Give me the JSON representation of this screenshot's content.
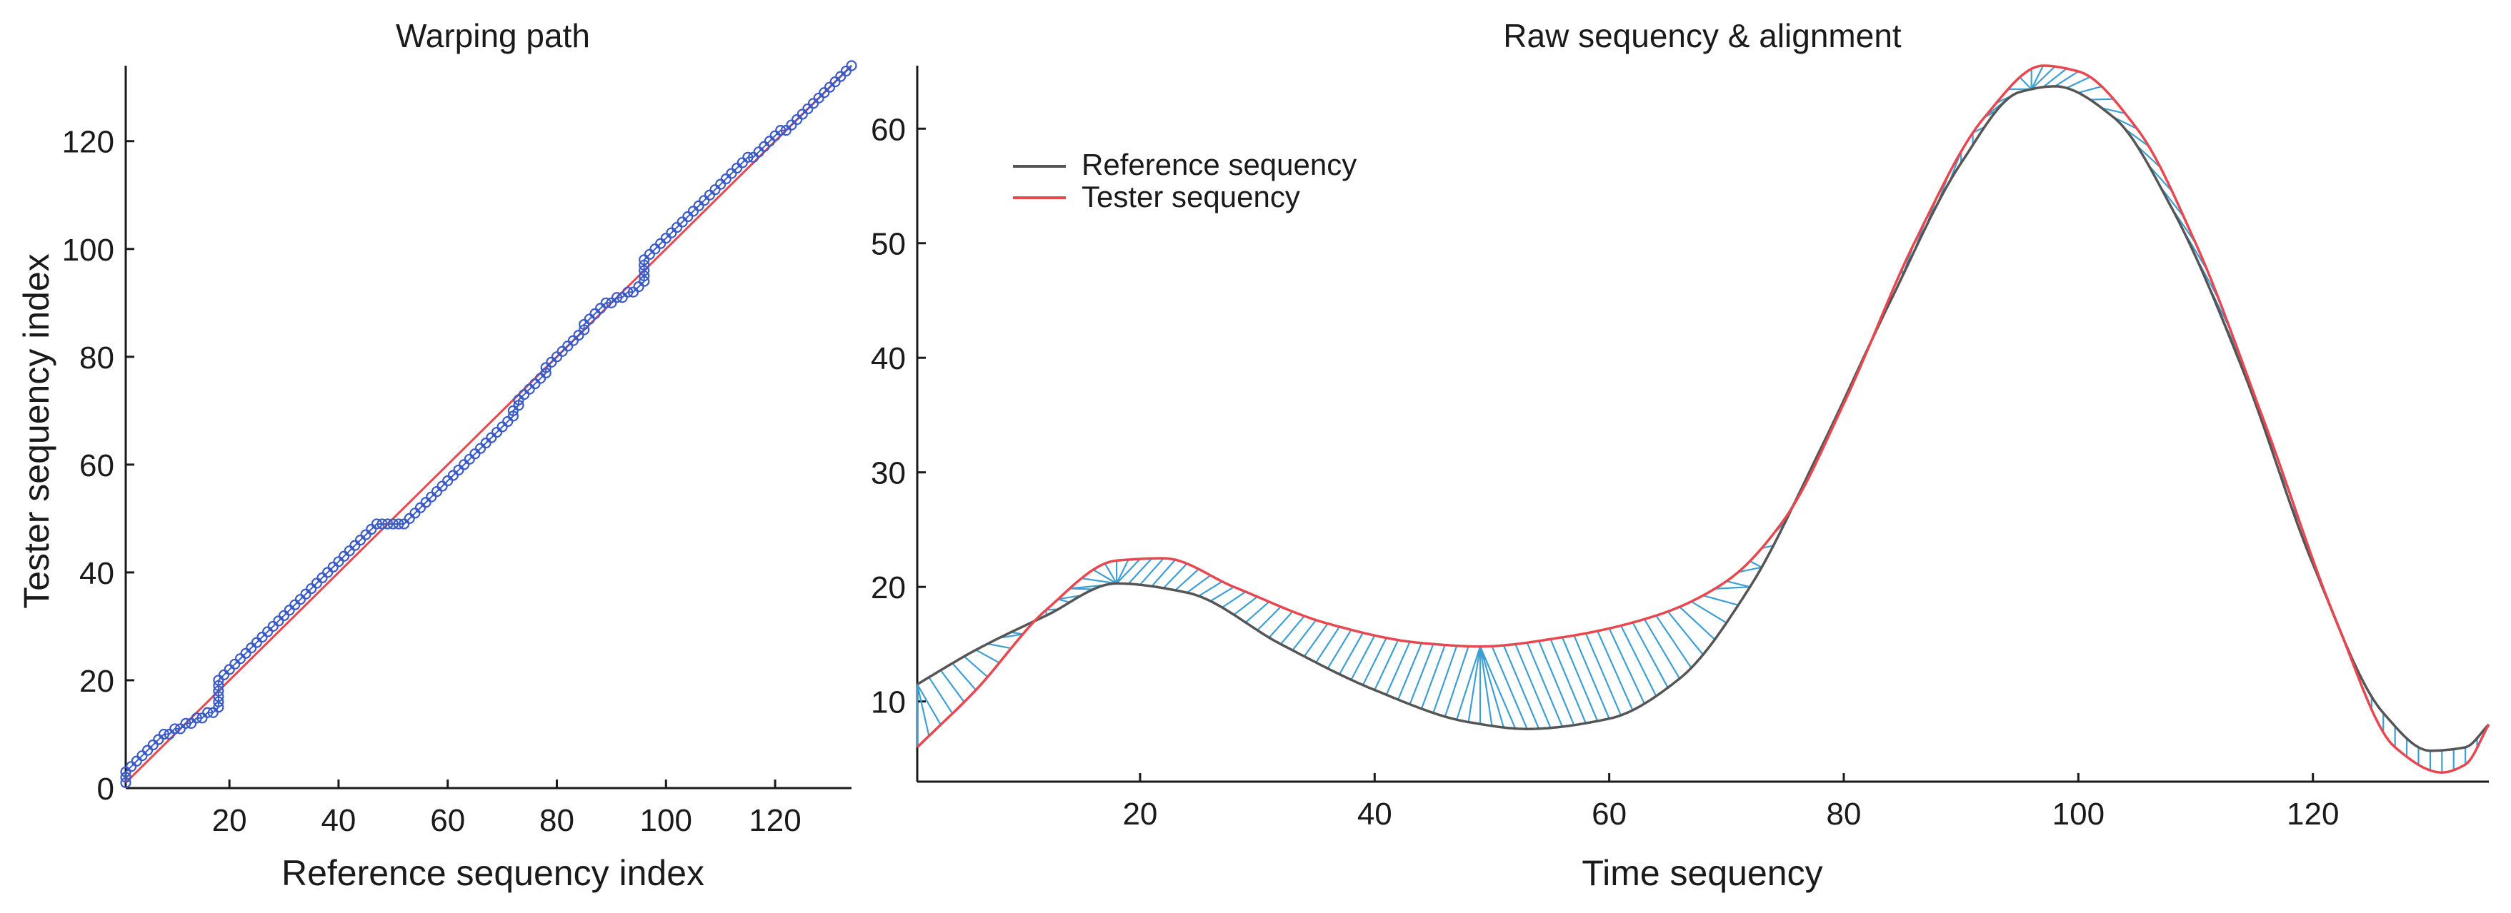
{
  "colors": {
    "reference": "#555555",
    "tester": "#e8474f",
    "alignment": "#3d9fd3",
    "path_marker": "#3a5bc7",
    "diagonal": "#e8474f",
    "axis": "#1a1a1a"
  },
  "chart_data": [
    {
      "type": "scatter",
      "title": "Warping path",
      "xlabel": "Reference sequency index",
      "ylabel": "Tester sequency index",
      "xlim": [
        1,
        134
      ],
      "ylim": [
        0,
        134
      ],
      "xticks": [
        20,
        40,
        60,
        80,
        100,
        120
      ],
      "yticks": [
        0,
        20,
        40,
        60,
        80,
        100,
        120
      ],
      "grid": false,
      "diagonal": {
        "from": [
          1,
          1
        ],
        "to": [
          134,
          134
        ]
      },
      "series": [
        {
          "marker": "circle",
          "path_points": [
            [
              1,
              1
            ],
            [
              1,
              3
            ],
            [
              2,
              4
            ],
            [
              3,
              5
            ],
            [
              4,
              6
            ],
            [
              5,
              7
            ],
            [
              6,
              8
            ],
            [
              7,
              9
            ],
            [
              9,
              10
            ],
            [
              11,
              11
            ],
            [
              13,
              12
            ],
            [
              15,
              13
            ],
            [
              17,
              14
            ],
            [
              18,
              15
            ],
            [
              18,
              16
            ],
            [
              18,
              17
            ],
            [
              18,
              18
            ],
            [
              18,
              19
            ],
            [
              18,
              20
            ],
            [
              19,
              21
            ],
            [
              47,
              49
            ],
            [
              52,
              49
            ],
            [
              53,
              50
            ],
            [
              71,
              68
            ],
            [
              72,
              70
            ],
            [
              73,
              72
            ],
            [
              74,
              73
            ],
            [
              89,
              90
            ],
            [
              92,
              91
            ],
            [
              94,
              92
            ],
            [
              95,
              93
            ],
            [
              96,
              94
            ],
            [
              96,
              96
            ],
            [
              96,
              98
            ],
            [
              97,
              99
            ],
            [
              114,
              116
            ],
            [
              116,
              117
            ],
            [
              126,
              126
            ],
            [
              127,
              127
            ],
            [
              134,
              134
            ]
          ]
        }
      ]
    },
    {
      "type": "line",
      "title": "Raw sequency & alignment",
      "xlabel": "Time sequency",
      "ylabel": "",
      "xlim": [
        1,
        135
      ],
      "ylim": [
        3,
        65.5
      ],
      "xticks": [
        20,
        40,
        60,
        80,
        100,
        120
      ],
      "yticks": [
        10,
        20,
        30,
        40,
        50,
        60
      ],
      "grid": false,
      "legend": "top-left",
      "series": [
        {
          "name": "Reference sequency",
          "x": [
            1,
            6,
            12,
            18,
            24,
            32,
            40,
            48,
            53,
            60,
            66,
            72,
            78,
            84,
            90,
            95,
            98,
            103,
            108,
            114,
            120,
            126,
            130,
            133,
            135
          ],
          "y": [
            11.5,
            14.5,
            17.5,
            20.3,
            19.5,
            15.0,
            11.0,
            8.2,
            7.6,
            8.5,
            12.0,
            20.0,
            32.0,
            45.0,
            57.0,
            63.2,
            63.7,
            61.0,
            53.0,
            39.0,
            22.0,
            9.0,
            5.7,
            6.0,
            8.0
          ]
        },
        {
          "name": "Tester sequency",
          "x": [
            1,
            6,
            12,
            18,
            22,
            28,
            36,
            44,
            49,
            56,
            64,
            70,
            75,
            80,
            86,
            92,
            97,
            100,
            105,
            110,
            116,
            122,
            127,
            131,
            133,
            135
          ],
          "y": [
            6.0,
            11.0,
            18.0,
            22.3,
            22.5,
            20.0,
            16.8,
            15.1,
            14.8,
            15.6,
            17.5,
            20.5,
            26.0,
            36.0,
            50.0,
            61.0,
            65.5,
            65.0,
            60.0,
            50.0,
            34.0,
            17.0,
            6.0,
            3.8,
            4.5,
            8.0
          ]
        }
      ]
    }
  ]
}
